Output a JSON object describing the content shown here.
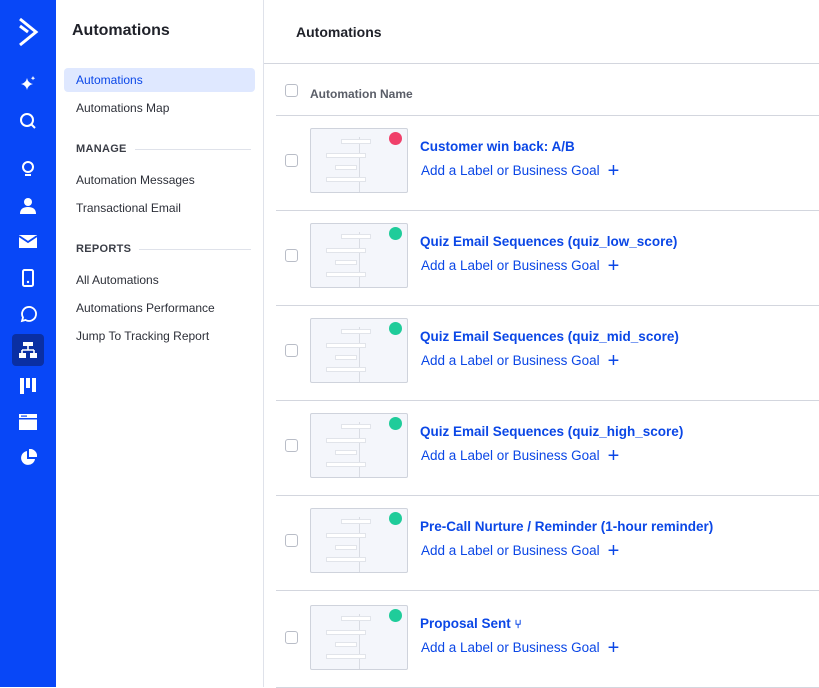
{
  "rail": {
    "brand_color": "#0847f7",
    "icons": [
      "logo-icon",
      "sparkle-icon",
      "search-icon",
      "lightbulb-icon",
      "contacts-icon",
      "email-icon",
      "sms-icon",
      "whatsapp-icon",
      "automations-icon",
      "pipelines-icon",
      "website-icon",
      "reports-icon"
    ],
    "active": "automations-icon"
  },
  "sidebar": {
    "title": "Automations",
    "items": [
      {
        "label": "Automations",
        "active": true
      },
      {
        "label": "Automations Map"
      }
    ],
    "manage_heading": "MANAGE",
    "manage_items": [
      {
        "label": "Automation Messages"
      },
      {
        "label": "Transactional Email"
      }
    ],
    "reports_heading": "REPORTS",
    "reports_items": [
      {
        "label": "All Automations"
      },
      {
        "label": "Automations Performance"
      },
      {
        "label": "Jump To Tracking Report"
      }
    ]
  },
  "main": {
    "title": "Automations",
    "column_header": "Automation Name",
    "goal_label": "Add a Label or Business Goal",
    "rows": [
      {
        "name": "Customer win back: A/B",
        "status_color": "#f0406a"
      },
      {
        "name": "Quiz Email Sequences (quiz_low_score)",
        "status_color": "#1fcc9a"
      },
      {
        "name": "Quiz Email Sequences (quiz_mid_score)",
        "status_color": "#1fcc9a"
      },
      {
        "name": "Quiz Email Sequences (quiz_high_score)",
        "status_color": "#1fcc9a"
      },
      {
        "name": "Pre-Call Nurture / Reminder (1-hour reminder)",
        "status_color": "#1fcc9a"
      },
      {
        "name": "Proposal Sent",
        "status_color": "#1fcc9a",
        "icon": "split-icon"
      }
    ]
  }
}
